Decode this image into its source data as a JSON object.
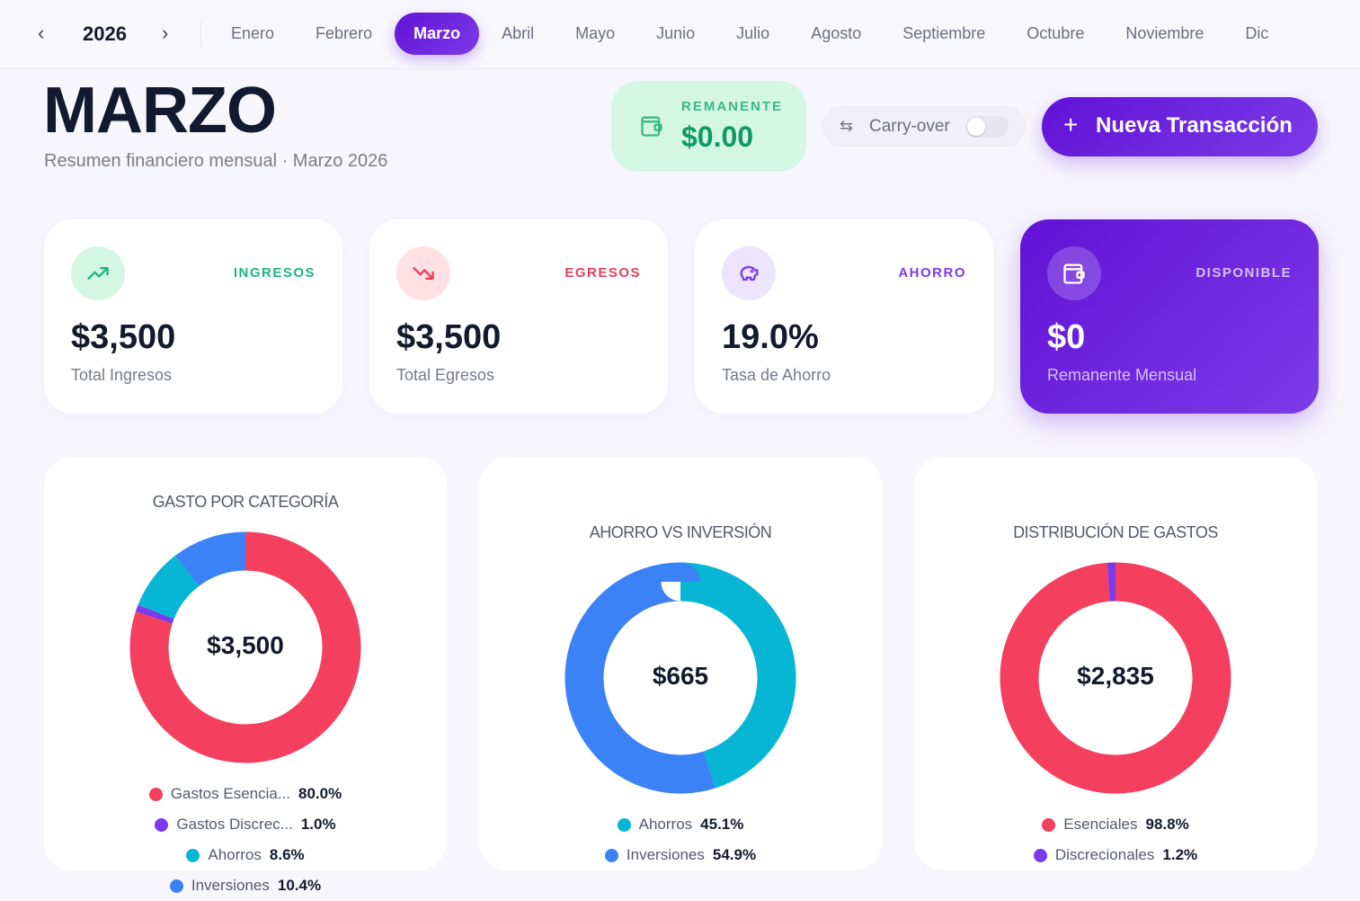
{
  "nav": {
    "year": "2026",
    "prev_icon": "chevron-left-icon",
    "next_icon": "chevron-right-icon",
    "months": [
      "Enero",
      "Febrero",
      "Marzo",
      "Abril",
      "Mayo",
      "Junio",
      "Julio",
      "Agosto",
      "Septiembre",
      "Octubre",
      "Noviembre",
      "Dic"
    ],
    "active_month": "Marzo"
  },
  "header": {
    "title": "MARZO",
    "subtitle": "Resumen financiero mensual · Marzo 2026",
    "remanente_label": "REMANENTE",
    "remanente_value": "$0.00",
    "carry_label": "Carry-over",
    "carry_on": false,
    "new_button": "Nueva Transacción"
  },
  "stats": [
    {
      "label": "INGRESOS",
      "value": "$3,500",
      "desc": "Total Ingresos",
      "icon": "trending-up-icon",
      "color": "#1fb57e"
    },
    {
      "label": "EGRESOS",
      "value": "$3,500",
      "desc": "Total Egresos",
      "icon": "trending-down-icon",
      "color": "#e53e5a"
    },
    {
      "label": "AHORRO",
      "value": "19.0%",
      "desc": "Tasa de Ahorro",
      "icon": "piggy-bank-icon",
      "color": "#7c3aed"
    },
    {
      "label": "DISPONIBLE",
      "value": "$0",
      "desc": "Remanente Mensual",
      "icon": "wallet-icon",
      "color": "#ffffff"
    }
  ],
  "charts": [
    {
      "title": "GASTO POR CATEGORÍA",
      "center": "$3,500",
      "chart_data": {
        "type": "pie",
        "donut": true,
        "categories": [
          "Gastos Esencia...",
          "Gastos Discrec...",
          "Ahorros",
          "Inversiones"
        ],
        "values": [
          80.0,
          1.0,
          8.6,
          10.4
        ],
        "labels": [
          "80.0%",
          "1.0%",
          "8.6%",
          "10.4%"
        ],
        "colors": [
          "#f43f5e",
          "#7c3aed",
          "#06b6d4",
          "#3b82f6"
        ]
      }
    },
    {
      "title": "AHORRO VS INVERSIÓN",
      "center": "$665",
      "chart_data": {
        "type": "pie",
        "donut": true,
        "categories": [
          "Ahorros",
          "Inversiones"
        ],
        "values": [
          45.1,
          54.9
        ],
        "labels": [
          "45.1%",
          "54.9%"
        ],
        "colors": [
          "#06b6d4",
          "#3b82f6"
        ]
      }
    },
    {
      "title": "DISTRIBUCIÓN DE GASTOS",
      "center": "$2,835",
      "chart_data": {
        "type": "pie",
        "donut": true,
        "categories": [
          "Esenciales",
          "Discrecionales"
        ],
        "values": [
          98.8,
          1.2
        ],
        "labels": [
          "98.8%",
          "1.2%"
        ],
        "colors": [
          "#f43f5e",
          "#7c3aed"
        ]
      }
    }
  ]
}
